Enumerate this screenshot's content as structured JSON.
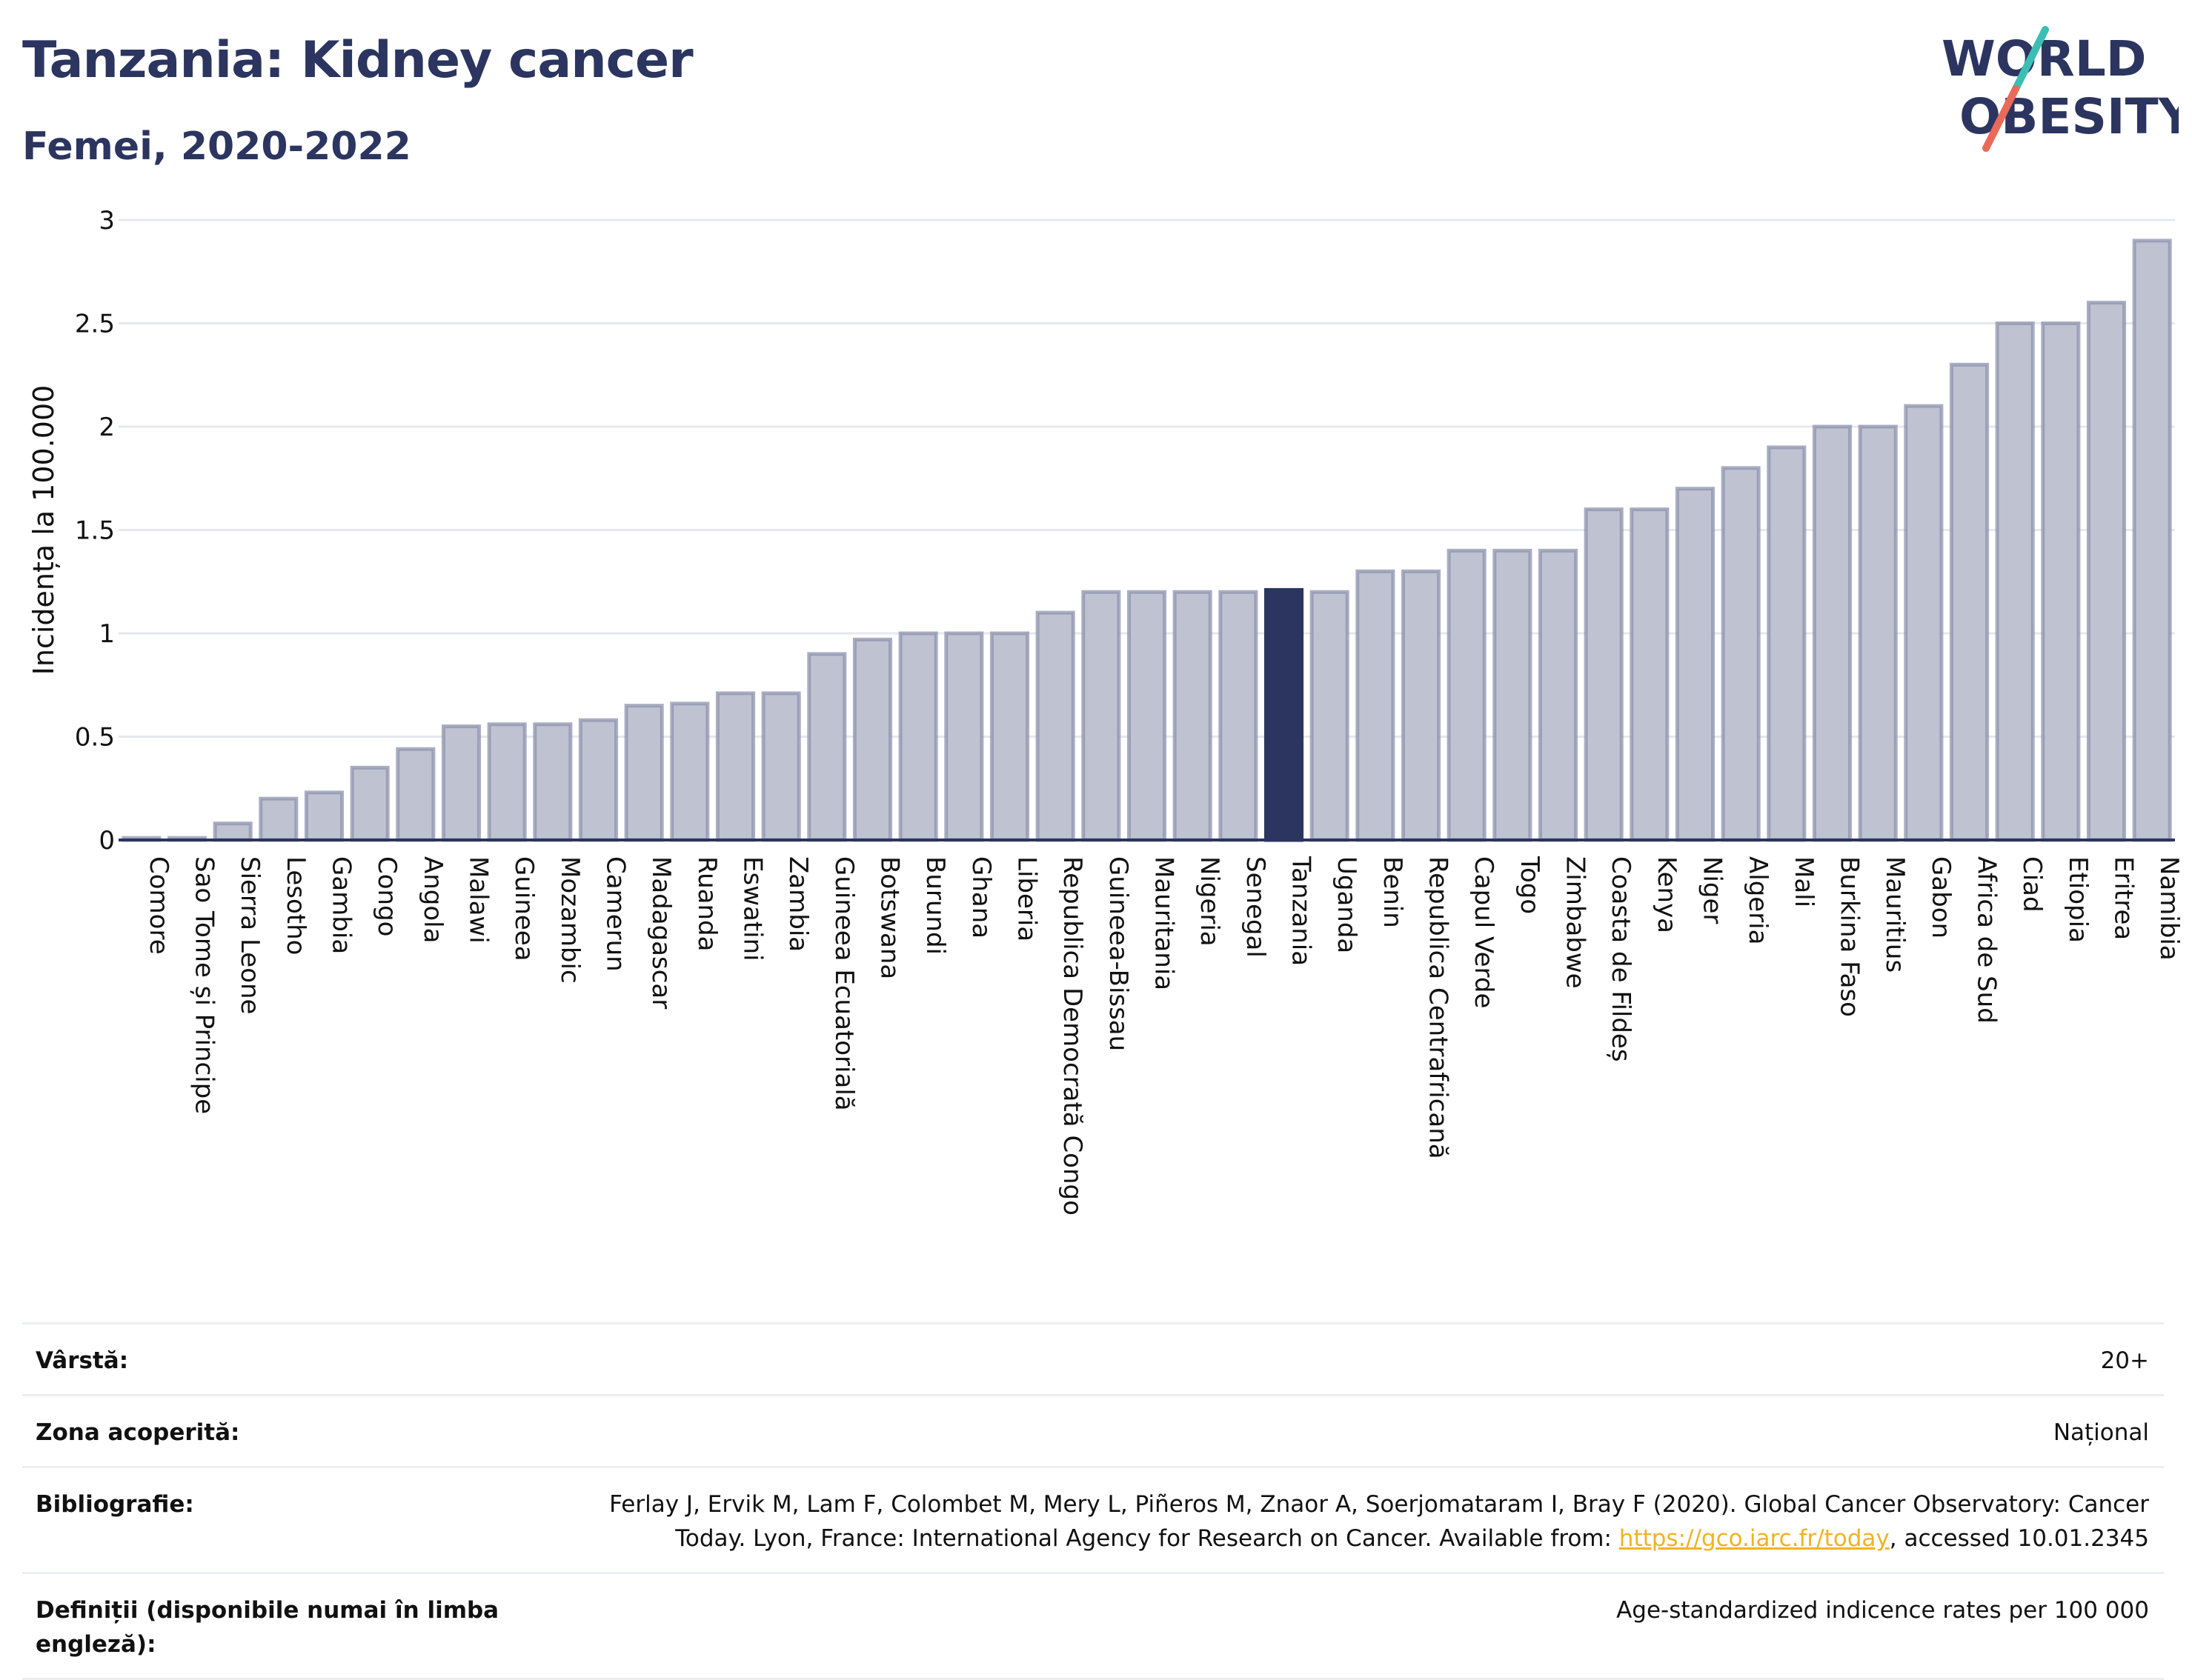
{
  "header": {
    "title": "Tanzania: Kidney cancer",
    "subtitle": "Femei, 2020-2022"
  },
  "logo": {
    "line1": "WORLD",
    "line2": "OBESITY"
  },
  "colors": {
    "bar": "#bfc3d1",
    "bar_border": "#8d93ad",
    "highlight": "#2b3560",
    "text_dark": "#2b3560",
    "link": "#f0b323"
  },
  "chart_data": {
    "type": "bar",
    "ylabel": "Incidența la 100.000",
    "xlabel": "",
    "ylim": [
      0,
      3
    ],
    "yticks": [
      0,
      0.5,
      1,
      1.5,
      2,
      2.5,
      3
    ],
    "grid": true,
    "highlight": "Tanzania",
    "categories": [
      "Comore",
      "Sao Tome și Principe",
      "Sierra Leone",
      "Lesotho",
      "Gambia",
      "Congo",
      "Angola",
      "Malawi",
      "Guineea",
      "Mozambic",
      "Camerun",
      "Madagascar",
      "Ruanda",
      "Eswatini",
      "Zambia",
      "Guineea Ecuatorială",
      "Botswana",
      "Burundi",
      "Ghana",
      "Liberia",
      "Republica Democrată Congo",
      "Guineea-Bissau",
      "Mauritania",
      "Nigeria",
      "Senegal",
      "Tanzania",
      "Uganda",
      "Benin",
      "Republica Centrafricană",
      "Capul Verde",
      "Togo",
      "Zimbabwe",
      "Coasta de Fildeș",
      "Kenya",
      "Niger",
      "Algeria",
      "Mali",
      "Burkina Faso",
      "Mauritius",
      "Gabon",
      "Africa de Sud",
      "Ciad",
      "Etiopia",
      "Eritrea",
      "Namibia"
    ],
    "values": [
      0.01,
      0.01,
      0.08,
      0.2,
      0.23,
      0.35,
      0.44,
      0.55,
      0.56,
      0.56,
      0.58,
      0.65,
      0.66,
      0.71,
      0.71,
      0.9,
      0.97,
      1.0,
      1.0,
      1.0,
      1.1,
      1.2,
      1.2,
      1.2,
      1.2,
      1.21,
      1.2,
      1.3,
      1.3,
      1.4,
      1.4,
      1.4,
      1.6,
      1.6,
      1.7,
      1.8,
      1.9,
      2.0,
      2.0,
      2.1,
      2.3,
      2.5,
      2.5,
      2.6,
      2.9
    ]
  },
  "meta": {
    "age_label": "Vârstă:",
    "age_value": "20+",
    "area_label": "Zona acoperită:",
    "area_value": "Național",
    "bib_label": "Bibliografie:",
    "bib_line1": "Ferlay J, Ervik M, Lam F, Colombet M, Mery L, Piñeros M, Znaor A, Soerjomataram I, Bray F (2020). Global Cancer Observatory: Cancer",
    "bib_line2_pre": "Today. Lyon, France: International Agency for Research on Cancer. Available from: ",
    "bib_link": "https://gco.iarc.fr/today",
    "bib_line2_post": ", accessed 10.01.2345",
    "def_label": "Definiții (disponibile numai în limba engleză):",
    "def_value": "Age-standardized indicence rates per 100 000"
  }
}
